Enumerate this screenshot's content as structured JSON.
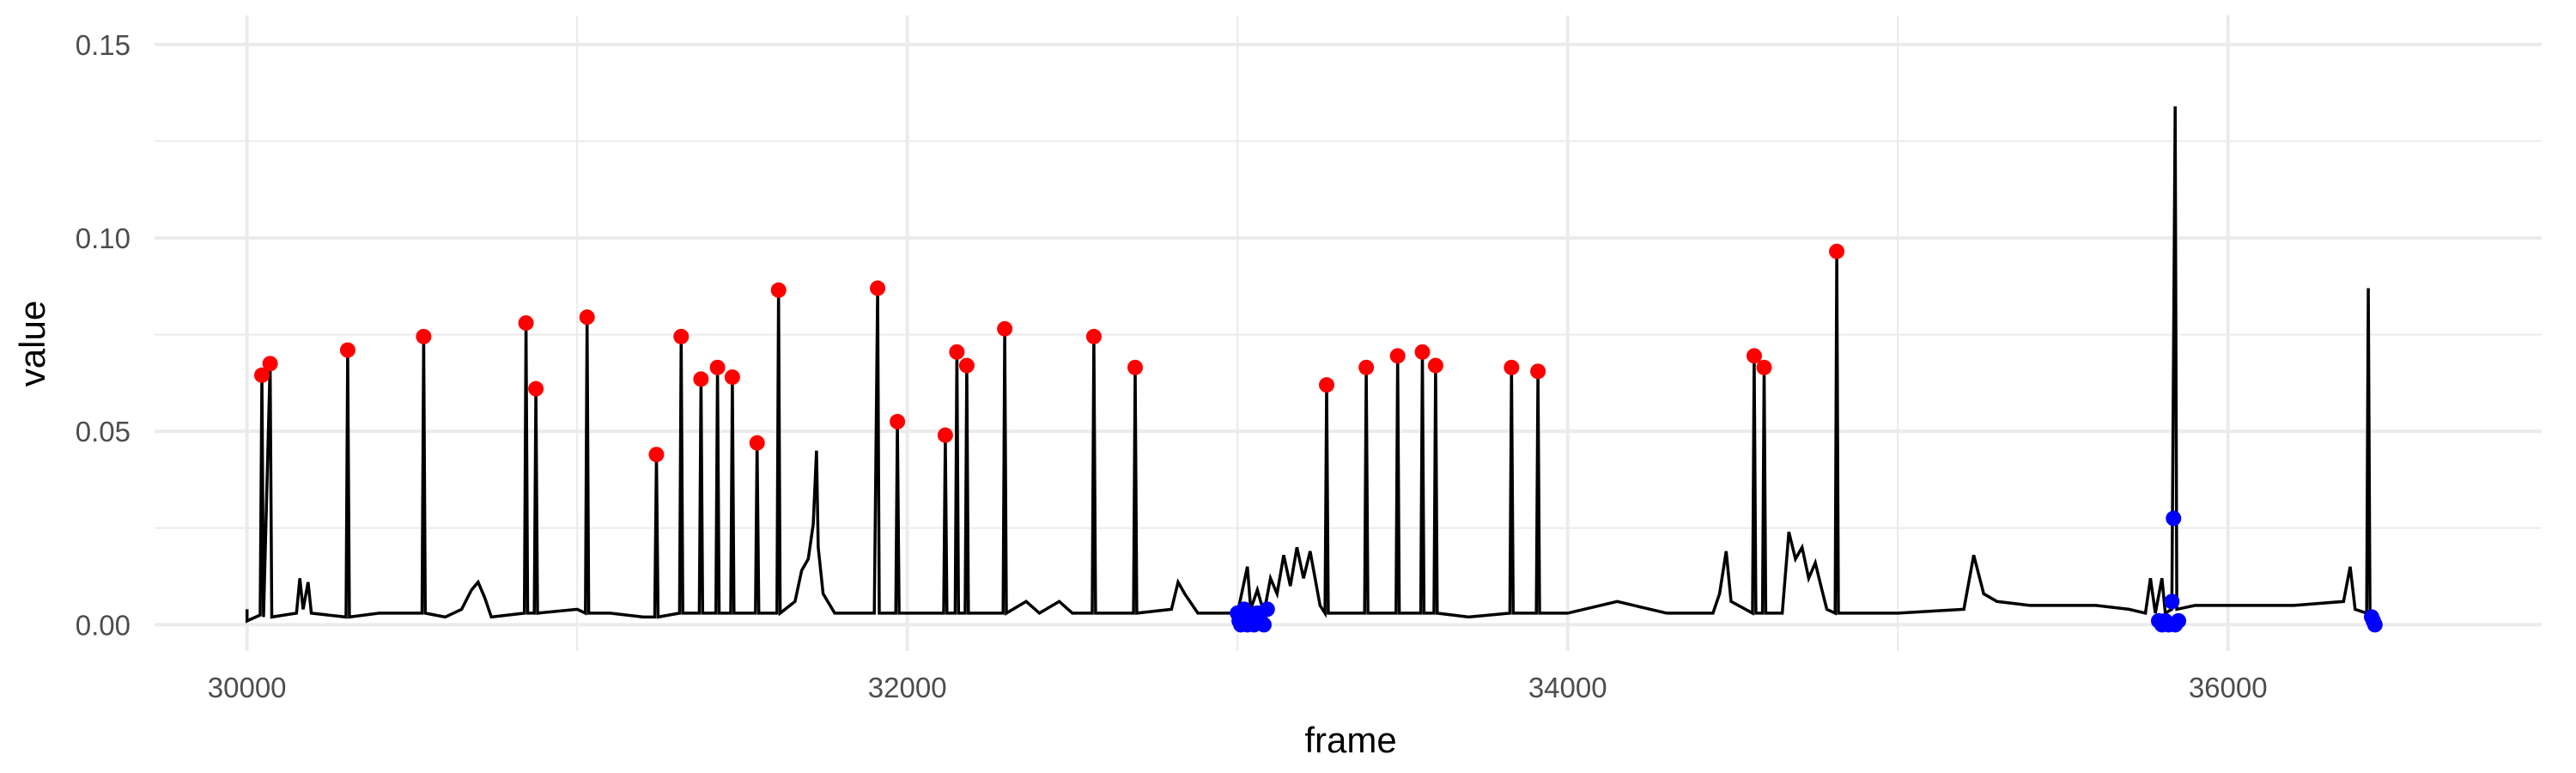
{
  "chart_data": {
    "type": "line",
    "xlabel": "frame",
    "ylabel": "value",
    "xlim": [
      29720,
      36950
    ],
    "ylim": [
      -0.0068,
      0.1575
    ],
    "x_ticks": [
      30000,
      32000,
      34000,
      36000
    ],
    "x_tick_labels": [
      "30000",
      "32000",
      "34000",
      "36000"
    ],
    "y_ticks": [
      0.0,
      0.05,
      0.1,
      0.15
    ],
    "y_tick_labels": [
      "0.00",
      "0.05",
      "0.10",
      "0.15"
    ],
    "grid": true,
    "colors": {
      "line": "#000000",
      "red_points": "#ff0000",
      "blue_points": "#0000ff",
      "grid": "#ebebeb"
    },
    "series": [
      {
        "values": [
          [
            30000,
            0.004
          ],
          [
            30000,
            0.001
          ],
          [
            30040,
            0.0025
          ],
          [
            30045,
            0.0645
          ],
          [
            30050,
            0.002
          ],
          [
            30070,
            0.0675
          ],
          [
            30075,
            0.002
          ],
          [
            30150,
            0.003
          ],
          [
            30160,
            0.012
          ],
          [
            30170,
            0.004
          ],
          [
            30185,
            0.011
          ],
          [
            30195,
            0.003
          ],
          [
            30300,
            0.002
          ],
          [
            30305,
            0.071
          ],
          [
            30310,
            0.002
          ],
          [
            30400,
            0.003
          ],
          [
            30530,
            0.003
          ],
          [
            30535,
            0.0745
          ],
          [
            30540,
            0.003
          ],
          [
            30600,
            0.002
          ],
          [
            30650,
            0.004
          ],
          [
            30680,
            0.009
          ],
          [
            30700,
            0.011
          ],
          [
            30720,
            0.007
          ],
          [
            30740,
            0.002
          ],
          [
            30840,
            0.003
          ],
          [
            30845,
            0.078
          ],
          [
            30850,
            0.003
          ],
          [
            30870,
            0.003
          ],
          [
            30875,
            0.061
          ],
          [
            30880,
            0.003
          ],
          [
            31000,
            0.004
          ],
          [
            31025,
            0.003
          ],
          [
            31030,
            0.0795
          ],
          [
            31035,
            0.003
          ],
          [
            31100,
            0.003
          ],
          [
            31200,
            0.002
          ],
          [
            31235,
            0.002
          ],
          [
            31240,
            0.044
          ],
          [
            31245,
            0.002
          ],
          [
            31310,
            0.003
          ],
          [
            31315,
            0.0745
          ],
          [
            31320,
            0.003
          ],
          [
            31370,
            0.003
          ],
          [
            31375,
            0.0635
          ],
          [
            31380,
            0.003
          ],
          [
            31420,
            0.003
          ],
          [
            31425,
            0.0665
          ],
          [
            31430,
            0.003
          ],
          [
            31465,
            0.003
          ],
          [
            31470,
            0.064
          ],
          [
            31475,
            0.003
          ],
          [
            31540,
            0.003
          ],
          [
            31545,
            0.047
          ],
          [
            31550,
            0.003
          ],
          [
            31605,
            0.003
          ],
          [
            31610,
            0.0865
          ],
          [
            31615,
            0.003
          ],
          [
            31660,
            0.006
          ],
          [
            31680,
            0.014
          ],
          [
            31700,
            0.017
          ],
          [
            31715,
            0.026
          ],
          [
            31725,
            0.045
          ],
          [
            31730,
            0.02
          ],
          [
            31745,
            0.008
          ],
          [
            31780,
            0.003
          ],
          [
            31900,
            0.003
          ],
          [
            31910,
            0.087
          ],
          [
            31915,
            0.003
          ],
          [
            31965,
            0.003
          ],
          [
            31970,
            0.0525
          ],
          [
            31975,
            0.003
          ],
          [
            32110,
            0.003
          ],
          [
            32115,
            0.049
          ],
          [
            32120,
            0.003
          ],
          [
            32145,
            0.003
          ],
          [
            32150,
            0.0705
          ],
          [
            32155,
            0.003
          ],
          [
            32175,
            0.003
          ],
          [
            32180,
            0.067
          ],
          [
            32185,
            0.003
          ],
          [
            32290,
            0.003
          ],
          [
            32295,
            0.0765
          ],
          [
            32300,
            0.003
          ],
          [
            32360,
            0.006
          ],
          [
            32400,
            0.003
          ],
          [
            32460,
            0.006
          ],
          [
            32500,
            0.003
          ],
          [
            32560,
            0.003
          ],
          [
            32565,
            0.0745
          ],
          [
            32570,
            0.003
          ],
          [
            32685,
            0.003
          ],
          [
            32690,
            0.0665
          ],
          [
            32695,
            0.003
          ],
          [
            32800,
            0.004
          ],
          [
            32820,
            0.011
          ],
          [
            32840,
            0.008
          ],
          [
            32880,
            0.003
          ],
          [
            33000,
            0.003
          ],
          [
            33030,
            0.015
          ],
          [
            33040,
            0.004
          ],
          [
            33060,
            0.009
          ],
          [
            33080,
            0.003
          ],
          [
            33100,
            0.012
          ],
          [
            33120,
            0.008
          ],
          [
            33140,
            0.018
          ],
          [
            33160,
            0.01
          ],
          [
            33180,
            0.02
          ],
          [
            33200,
            0.012
          ],
          [
            33220,
            0.019
          ],
          [
            33250,
            0.005
          ],
          [
            33265,
            0.003
          ],
          [
            33270,
            0.062
          ],
          [
            33275,
            0.003
          ],
          [
            33385,
            0.003
          ],
          [
            33390,
            0.0665
          ],
          [
            33395,
            0.003
          ],
          [
            33480,
            0.003
          ],
          [
            33485,
            0.0695
          ],
          [
            33490,
            0.003
          ],
          [
            33555,
            0.003
          ],
          [
            33560,
            0.0705
          ],
          [
            33565,
            0.003
          ],
          [
            33595,
            0.003
          ],
          [
            33600,
            0.067
          ],
          [
            33605,
            0.003
          ],
          [
            33700,
            0.002
          ],
          [
            33825,
            0.003
          ],
          [
            33830,
            0.0665
          ],
          [
            33835,
            0.003
          ],
          [
            33905,
            0.003
          ],
          [
            33910,
            0.0655
          ],
          [
            33915,
            0.003
          ],
          [
            34000,
            0.003
          ],
          [
            34150,
            0.006
          ],
          [
            34300,
            0.003
          ],
          [
            34440,
            0.003
          ],
          [
            34460,
            0.008
          ],
          [
            34480,
            0.019
          ],
          [
            34495,
            0.006
          ],
          [
            34560,
            0.003
          ],
          [
            34565,
            0.0695
          ],
          [
            34570,
            0.003
          ],
          [
            34590,
            0.003
          ],
          [
            34595,
            0.0665
          ],
          [
            34600,
            0.003
          ],
          [
            34650,
            0.003
          ],
          [
            34670,
            0.024
          ],
          [
            34690,
            0.017
          ],
          [
            34710,
            0.02
          ],
          [
            34730,
            0.012
          ],
          [
            34750,
            0.016
          ],
          [
            34770,
            0.009
          ],
          [
            34785,
            0.004
          ],
          [
            34810,
            0.003
          ],
          [
            34815,
            0.0965
          ],
          [
            34820,
            0.003
          ],
          [
            35000,
            0.003
          ],
          [
            35200,
            0.004
          ],
          [
            35230,
            0.018
          ],
          [
            35260,
            0.008
          ],
          [
            35300,
            0.006
          ],
          [
            35400,
            0.005
          ],
          [
            35600,
            0.005
          ],
          [
            35700,
            0.004
          ],
          [
            35750,
            0.003
          ],
          [
            35765,
            0.012
          ],
          [
            35780,
            0.003
          ],
          [
            35800,
            0.012
          ],
          [
            35810,
            0.003
          ],
          [
            35830,
            0.004
          ],
          [
            35840,
            0.134
          ],
          [
            35845,
            0.004
          ],
          [
            35900,
            0.005
          ],
          [
            36000,
            0.005
          ],
          [
            36200,
            0.005
          ],
          [
            36350,
            0.006
          ],
          [
            36370,
            0.015
          ],
          [
            36385,
            0.004
          ],
          [
            36420,
            0.003
          ],
          [
            36425,
            0.087
          ],
          [
            36430,
            0.003
          ],
          [
            36440,
            0.001
          ]
        ]
      }
    ],
    "red_points": [
      [
        30045,
        0.0645
      ],
      [
        30070,
        0.0675
      ],
      [
        30305,
        0.071
      ],
      [
        30535,
        0.0745
      ],
      [
        30845,
        0.078
      ],
      [
        30875,
        0.061
      ],
      [
        31030,
        0.0795
      ],
      [
        31240,
        0.044
      ],
      [
        31315,
        0.0745
      ],
      [
        31375,
        0.0635
      ],
      [
        31425,
        0.0665
      ],
      [
        31470,
        0.064
      ],
      [
        31545,
        0.047
      ],
      [
        31610,
        0.0865
      ],
      [
        31910,
        0.087
      ],
      [
        31970,
        0.0525
      ],
      [
        32115,
        0.049
      ],
      [
        32150,
        0.0705
      ],
      [
        32180,
        0.067
      ],
      [
        32295,
        0.0765
      ],
      [
        32565,
        0.0745
      ],
      [
        32690,
        0.0665
      ],
      [
        33270,
        0.062
      ],
      [
        33390,
        0.0665
      ],
      [
        33485,
        0.0695
      ],
      [
        33560,
        0.0705
      ],
      [
        33600,
        0.067
      ],
      [
        33830,
        0.0665
      ],
      [
        33910,
        0.0655
      ],
      [
        34565,
        0.0695
      ],
      [
        34595,
        0.0665
      ],
      [
        34815,
        0.0965
      ]
    ],
    "blue_points": [
      [
        33000,
        0.003
      ],
      [
        33005,
        0.001
      ],
      [
        33010,
        0.0
      ],
      [
        33015,
        0.002
      ],
      [
        33020,
        0.004
      ],
      [
        33025,
        0.001
      ],
      [
        33030,
        0.0
      ],
      [
        33040,
        0.002
      ],
      [
        33050,
        0.0
      ],
      [
        33060,
        0.003
      ],
      [
        33070,
        0.001
      ],
      [
        33080,
        0.0
      ],
      [
        33090,
        0.004
      ],
      [
        35790,
        0.001
      ],
      [
        35800,
        0.0
      ],
      [
        35810,
        0.001
      ],
      [
        35820,
        0.0
      ],
      [
        35830,
        0.006
      ],
      [
        35835,
        0.0275
      ],
      [
        35840,
        0.0
      ],
      [
        35850,
        0.001
      ],
      [
        36435,
        0.002
      ],
      [
        36440,
        0.001
      ],
      [
        36445,
        0.0
      ]
    ]
  }
}
